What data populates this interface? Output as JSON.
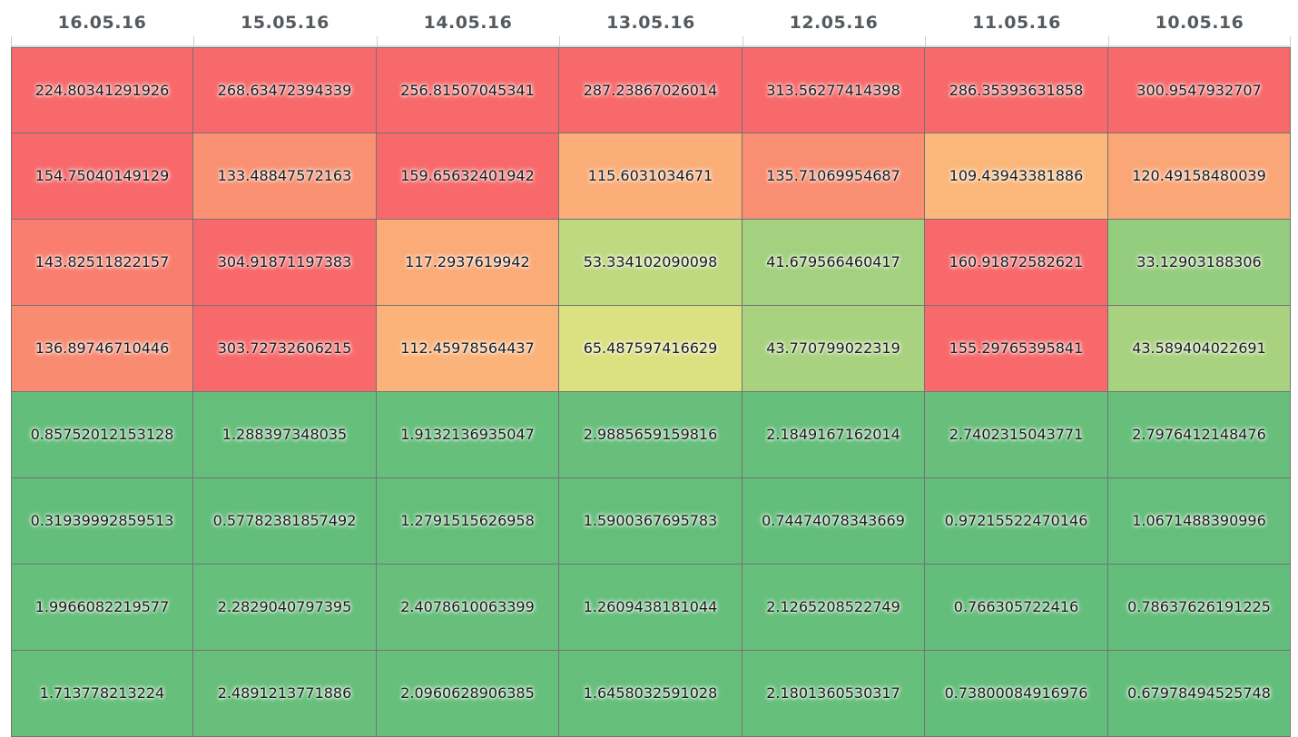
{
  "chart_data": {
    "type": "heatmap",
    "columns": [
      "16.05.16",
      "15.05.16",
      "14.05.16",
      "13.05.16",
      "12.05.16",
      "11.05.16",
      "10.05.16"
    ],
    "rows": [
      [
        "224.80341291926",
        "268.63472394339",
        "256.81507045341",
        "287.23867026014",
        "313.56277414398",
        "286.35393631858",
        "300.9547932707"
      ],
      [
        "154.75040149129",
        "133.48847572163",
        "159.65632401942",
        "115.6031034671",
        "135.71069954687",
        "109.43943381886",
        "120.49158480039"
      ],
      [
        "143.82511822157",
        "304.91871197383",
        "117.2937619942",
        "53.334102090098",
        "41.679566460417",
        "160.91872582621",
        "33.12903188306"
      ],
      [
        "136.89746710446",
        "303.72732606215",
        "112.45978564437",
        "65.487597416629",
        "43.770799022319",
        "155.29765395841",
        "43.589404022691"
      ],
      [
        "0.85752012153128",
        "1.288397348035",
        "1.9132136935047",
        "2.9885659159816",
        "2.1849167162014",
        "2.7402315043771",
        "2.7976412148476"
      ],
      [
        "0.31939992859513",
        "0.57782381857492",
        "1.2791515626958",
        "1.5900367695783",
        "0.74474078343669",
        "0.97215522470146",
        "1.0671488390996"
      ],
      [
        "1.9966082219577",
        "2.2829040797395",
        "2.4078610063399",
        "1.2609438181044",
        "2.1265208522749",
        "0.766305722416",
        "0.78637626191225"
      ],
      [
        "1.713778213224",
        "2.4891213771886",
        "2.0960628906385",
        "1.6458032591028",
        "2.1801360530317",
        "0.73800084916976",
        "0.67978494525748"
      ]
    ],
    "color_scale": [
      {
        "value": 0,
        "color": "#63be7b"
      },
      {
        "value": 40,
        "color": "#9fd07f"
      },
      {
        "value": 65,
        "color": "#dbe081"
      },
      {
        "value": 110,
        "color": "#fbb77a"
      },
      {
        "value": 135,
        "color": "#f98f72"
      },
      {
        "value": 155,
        "color": "#f8696b"
      }
    ]
  }
}
